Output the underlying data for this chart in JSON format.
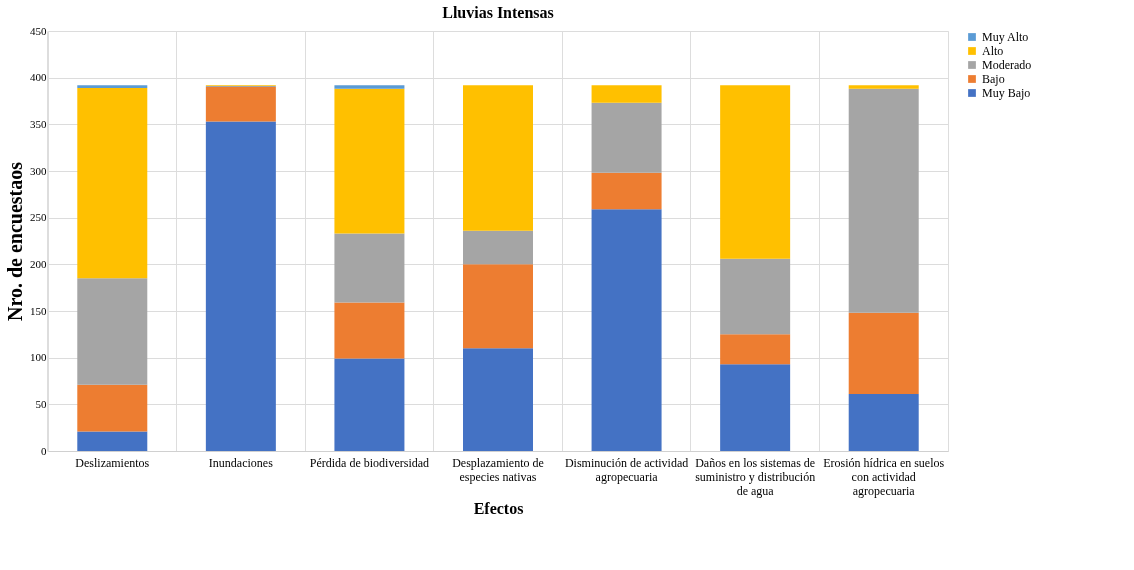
{
  "chart_data": {
    "type": "bar",
    "title": "Lluvias Intensas",
    "xlabel": "Efectos",
    "ylabel": "Nro. de encuestaos",
    "categories": [
      "Deslizamientos",
      "Inundaciones",
      "Pérdida de biodiversidad",
      "Desplazamiento de especies nativas",
      "Disminución de actividad agropecuaria",
      "Daños en los sistemas de suministro y distribución de agua",
      "Erosión hídrica en suelos con actividad agropecuaria"
    ],
    "stacked": true,
    "series": [
      {
        "name": "Muy Bajo",
        "color": "#4472c4",
        "values": [
          21,
          353,
          99,
          110,
          259,
          93,
          61
        ]
      },
      {
        "name": "Bajo",
        "color": "#ed7d31",
        "values": [
          50,
          37,
          60,
          90,
          39,
          32,
          87
        ]
      },
      {
        "name": "Moderado",
        "color": "#a5a5a5",
        "values": [
          114,
          1,
          74,
          36,
          75,
          81,
          240
        ]
      },
      {
        "name": "Alto",
        "color": "#ffc000",
        "values": [
          204,
          1,
          155,
          156,
          19,
          186,
          4
        ]
      },
      {
        "name": "Muy Alto",
        "color": "#5b9bd5",
        "values": [
          3,
          0,
          4,
          0,
          0,
          0,
          0
        ]
      }
    ],
    "ylim": [
      0,
      450
    ],
    "yticks": [
      0,
      50,
      100,
      150,
      200,
      250,
      300,
      350,
      400,
      450
    ],
    "grid": true,
    "legend": "right"
  }
}
